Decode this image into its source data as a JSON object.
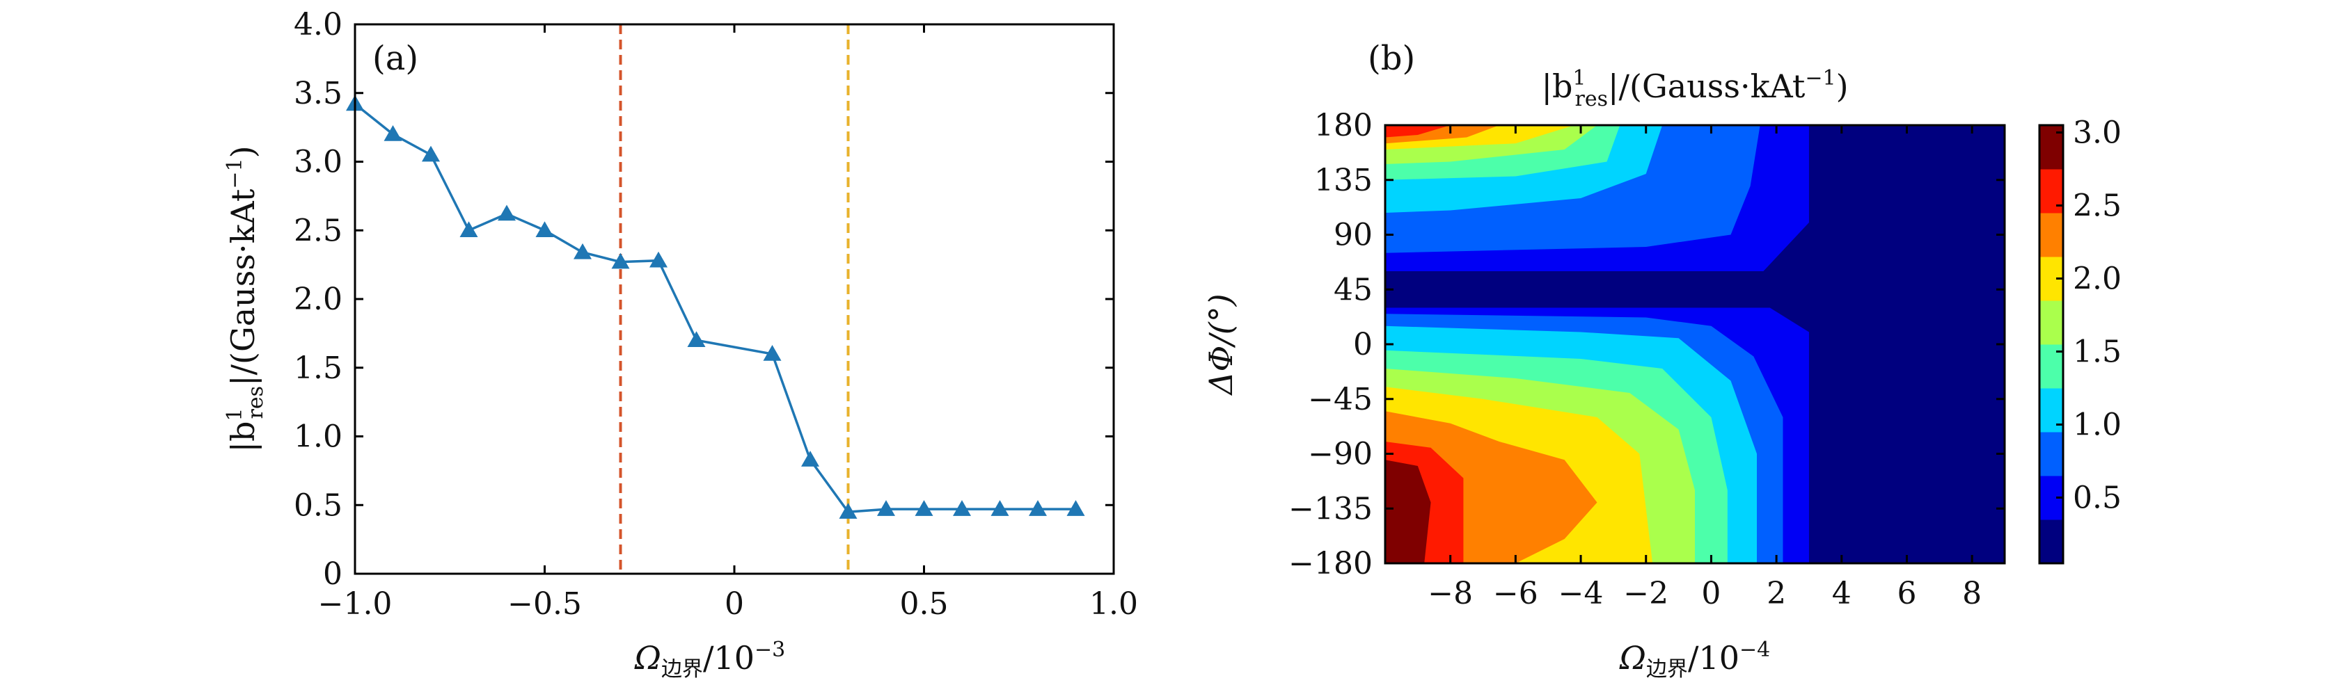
{
  "chart_data": [
    {
      "type": "line",
      "panel_label": "(a)",
      "title": "",
      "xlabel": {
        "sym": "Ω",
        "sub": "边界",
        "unit": "/10",
        "exp": "−3"
      },
      "ylabel": {
        "pre": "|b",
        "sup": "1",
        "sub": "res",
        "post": "|/(Gauss·kAt",
        "exp": "−1",
        "close": ")"
      },
      "xlim": [
        -1.0,
        1.0
      ],
      "ylim": [
        0,
        4.0
      ],
      "xticks": [
        -1.0,
        -0.5,
        0,
        0.5,
        1.0
      ],
      "xtick_labels": [
        "−1.0",
        "−0.5",
        "0",
        "0.5",
        "1.0"
      ],
      "yticks": [
        0,
        0.5,
        1.0,
        1.5,
        2.0,
        2.5,
        3.0,
        3.5,
        4.0
      ],
      "ytick_labels": [
        "0",
        "0.5",
        "1.0",
        "1.5",
        "2.0",
        "2.5",
        "3.0",
        "3.5",
        "4.0"
      ],
      "series": [
        {
          "name": "|b1res|",
          "color": "#1f77b4",
          "marker": "triangle",
          "x": [
            -1.0,
            -0.9,
            -0.8,
            -0.7,
            -0.6,
            -0.5,
            -0.4,
            -0.3,
            -0.2,
            -0.1,
            0.1,
            0.2,
            0.3,
            0.4,
            0.5,
            0.6,
            0.7,
            0.8,
            0.9
          ],
          "y": [
            3.42,
            3.2,
            3.05,
            2.5,
            2.62,
            2.5,
            2.34,
            2.27,
            2.28,
            1.7,
            1.6,
            0.83,
            0.45,
            0.47,
            0.47,
            0.47,
            0.47,
            0.47,
            0.47
          ]
        }
      ],
      "vlines": [
        {
          "x": -0.3,
          "color": "#d4542b",
          "style": "dashed"
        },
        {
          "x": 0.3,
          "color": "#e8b22c",
          "style": "dashed"
        }
      ]
    },
    {
      "type": "heatmap",
      "subtype": "filled-contour",
      "panel_label": "(b)",
      "title": {
        "pre": "|b",
        "sup": "1",
        "sub": "res",
        "post": "|/(Gauss·kAt",
        "exp": "−1",
        "close": ")"
      },
      "xlabel": {
        "sym": "Ω",
        "sub": "边界",
        "unit": "/10",
        "exp": "−4"
      },
      "ylabel": {
        "text": "ΔΦ/(°)"
      },
      "xlim": [
        -10,
        9
      ],
      "ylim": [
        -180,
        180
      ],
      "xticks": [
        -8,
        -6,
        -4,
        -2,
        0,
        2,
        4,
        6,
        8
      ],
      "xtick_labels": [
        "−8",
        "−6",
        "−4",
        "−2",
        "0",
        "2",
        "4",
        "6",
        "8"
      ],
      "yticks": [
        180,
        135,
        90,
        45,
        0,
        -45,
        -90,
        -135,
        -180
      ],
      "ytick_labels": [
        "180",
        "135",
        "90",
        "45",
        "0",
        "−45",
        "−90",
        "−135",
        "−180"
      ],
      "colorbar": {
        "range": [
          0.05,
          3.05
        ],
        "ticks": [
          3.0,
          2.5,
          2.0,
          1.5,
          1.0,
          0.5
        ],
        "tick_labels": [
          "3.0",
          "2.5",
          "2.0",
          "1.5",
          "1.0",
          "0.5"
        ],
        "colors": [
          "#00007f",
          "#0000f5",
          "#0060ff",
          "#00d4ff",
          "#4cffaa",
          "#aaff4c",
          "#ffe500",
          "#ff8000",
          "#ff1a00",
          "#7f0000"
        ]
      },
      "contour_levels": [
        {
          "level_index": 0,
          "x_upper_bound": 9,
          "y_ranges": [
            [
              -180,
              180
            ]
          ]
        },
        {
          "level_index": 1,
          "region": "left",
          "x_bounds_by_y": [
            [
              180,
              3.0
            ],
            [
              100,
              3.0
            ],
            [
              65,
              2.0
            ],
            [
              45,
              1.0
            ],
            [
              20,
              3.0
            ],
            [
              -45,
              3.0
            ],
            [
              -180,
              3.0
            ]
          ]
        },
        {
          "level_index": 2,
          "x_right_edges": "see polygons"
        }
      ],
      "polygons": [
        {
          "level": 1,
          "pts": [
            [
              -10,
              180
            ],
            [
              3,
              180
            ],
            [
              3,
              100
            ],
            [
              1.6,
              60
            ],
            [
              -10,
              60
            ]
          ]
        },
        {
          "level": 1,
          "pts": [
            [
              -10,
              30
            ],
            [
              1.8,
              30
            ],
            [
              3,
              10
            ],
            [
              3,
              -180
            ],
            [
              -10,
              -180
            ]
          ]
        },
        {
          "level": 2,
          "pts": [
            [
              -10,
              180
            ],
            [
              1.5,
              180
            ],
            [
              1.2,
              130
            ],
            [
              0.6,
              90
            ],
            [
              -2,
              80
            ],
            [
              -10,
              75
            ]
          ]
        },
        {
          "level": 2,
          "pts": [
            [
              -10,
              25
            ],
            [
              -2,
              22
            ],
            [
              0,
              15
            ],
            [
              1.3,
              -10
            ],
            [
              2.2,
              -60
            ],
            [
              2.2,
              -180
            ],
            [
              -10,
              -180
            ]
          ]
        },
        {
          "level": 3,
          "pts": [
            [
              -10,
              180
            ],
            [
              -1.5,
              180
            ],
            [
              -2,
              140
            ],
            [
              -4,
              120
            ],
            [
              -8,
              110
            ],
            [
              -10,
              108
            ]
          ]
        },
        {
          "level": 3,
          "pts": [
            [
              -10,
              15
            ],
            [
              -4,
              10
            ],
            [
              -1,
              5
            ],
            [
              0.6,
              -30
            ],
            [
              1.4,
              -90
            ],
            [
              1.4,
              -180
            ],
            [
              -10,
              -180
            ]
          ]
        },
        {
          "level": 4,
          "pts": [
            [
              -10,
              180
            ],
            [
              -2.8,
              180
            ],
            [
              -3.2,
              150
            ],
            [
              -6,
              138
            ],
            [
              -10,
              135
            ]
          ]
        },
        {
          "level": 4,
          "pts": [
            [
              -10,
              -5
            ],
            [
              -4,
              -12
            ],
            [
              -1.5,
              -20
            ],
            [
              0,
              -60
            ],
            [
              0.5,
              -120
            ],
            [
              0.5,
              -180
            ],
            [
              -10,
              -180
            ]
          ]
        },
        {
          "level": 5,
          "pts": [
            [
              -10,
              180
            ],
            [
              -3.5,
              180
            ],
            [
              -4.5,
              160
            ],
            [
              -8,
              150
            ],
            [
              -10,
              148
            ]
          ]
        },
        {
          "level": 5,
          "pts": [
            [
              -10,
              -20
            ],
            [
              -6,
              -28
            ],
            [
              -2.5,
              -40
            ],
            [
              -1,
              -70
            ],
            [
              -0.5,
              -120
            ],
            [
              -0.5,
              -180
            ],
            [
              -10,
              -180
            ]
          ]
        },
        {
          "level": 6,
          "pts": [
            [
              -10,
              180
            ],
            [
              -4.2,
              180
            ],
            [
              -6,
              165
            ],
            [
              -10,
              160
            ]
          ]
        },
        {
          "level": 6,
          "pts": [
            [
              -10,
              -35
            ],
            [
              -7,
              -45
            ],
            [
              -3.5,
              -60
            ],
            [
              -2.2,
              -90
            ],
            [
              -1.8,
              -180
            ],
            [
              -10,
              -180
            ]
          ]
        },
        {
          "level": 7,
          "pts": [
            [
              -10,
              180
            ],
            [
              -6.5,
              180
            ],
            [
              -7.5,
              170
            ],
            [
              -10,
              165
            ]
          ]
        },
        {
          "level": 7,
          "pts": [
            [
              -10,
              -55
            ],
            [
              -8,
              -65
            ],
            [
              -6.5,
              -80
            ],
            [
              -4.5,
              -95
            ],
            [
              -3.5,
              -130
            ],
            [
              -4.5,
              -160
            ],
            [
              -6,
              -180
            ],
            [
              -10,
              -180
            ]
          ]
        },
        {
          "level": 8,
          "pts": [
            [
              -10,
              180
            ],
            [
              -8,
              180
            ],
            [
              -9,
              172
            ],
            [
              -10,
              170
            ]
          ]
        },
        {
          "level": 8,
          "pts": [
            [
              -10,
              -80
            ],
            [
              -8.6,
              -85
            ],
            [
              -7.6,
              -110
            ],
            [
              -7.6,
              -180
            ],
            [
              -10,
              -180
            ]
          ]
        },
        {
          "level": 9,
          "pts": [
            [
              -10,
              -95
            ],
            [
              -9,
              -100
            ],
            [
              -8.6,
              -130
            ],
            [
              -8.8,
              -180
            ],
            [
              -10,
              -180
            ]
          ]
        }
      ]
    }
  ]
}
